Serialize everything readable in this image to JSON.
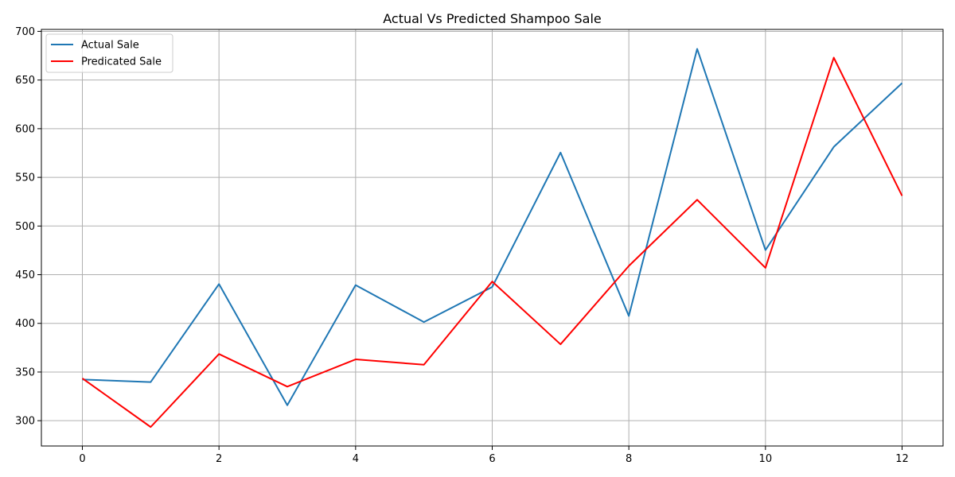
{
  "chart_data": {
    "type": "line",
    "title": "Actual Vs Predicted Shampoo Sale",
    "xlabel": "",
    "ylabel": "",
    "x": [
      0,
      1,
      2,
      3,
      4,
      5,
      6,
      7,
      8,
      9,
      10,
      11,
      12
    ],
    "xlim": [
      -0.6,
      12.6
    ],
    "ylim": [
      274,
      702
    ],
    "x_ticks": [
      0,
      2,
      4,
      6,
      8,
      10,
      12
    ],
    "y_ticks": [
      300,
      350,
      400,
      450,
      500,
      550,
      600,
      650,
      700
    ],
    "grid": true,
    "legend_position": "top-left",
    "series": [
      {
        "name": "Actual Sale",
        "color": "#1f77b4",
        "values": [
          342.3,
          339.7,
          440.4,
          315.9,
          439.3,
          401.3,
          437.4,
          575.5,
          407.6,
          682.0,
          475.3,
          581.3,
          646.9
        ]
      },
      {
        "name": "Predicated Sale",
        "color": "#ff0000",
        "values": [
          343.5,
          293.5,
          368.5,
          335.0,
          363.0,
          357.5,
          443.0,
          378.5,
          459.0,
          527.0,
          457.0,
          673.0,
          531.0
        ]
      }
    ]
  }
}
